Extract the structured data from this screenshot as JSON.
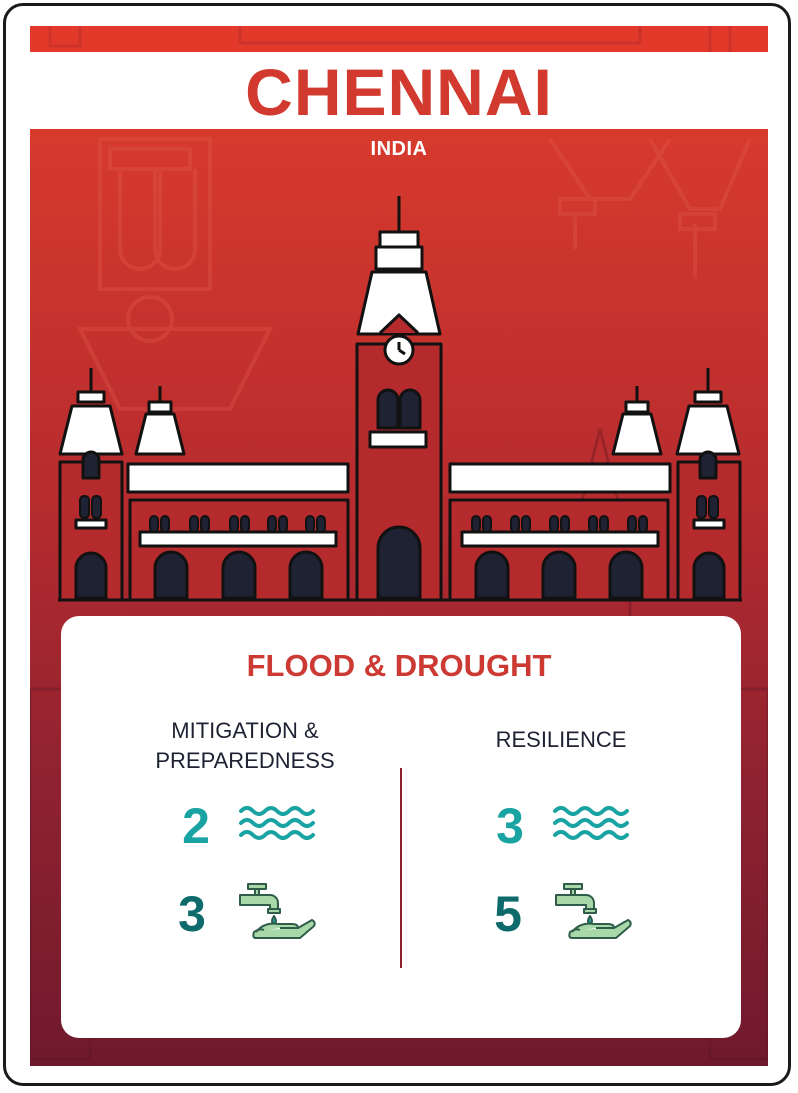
{
  "card": {
    "city": "CHENNAI",
    "country": "INDIA"
  },
  "hazard": {
    "title": "FLOOD & DROUGHT"
  },
  "columns": {
    "left": {
      "heading_line1": "MITIGATION &",
      "heading_line2": "PREPAREDNESS"
    },
    "right": {
      "heading": "RESILIENCE"
    }
  },
  "stats": {
    "mitigation_flood": "2",
    "mitigation_drought": "3",
    "resilience_flood": "3",
    "resilience_drought": "5"
  },
  "icons": {
    "flood": "water-waves-icon",
    "drought": "faucet-hand-icon",
    "landmark": "chennai-central-building-icon"
  },
  "colors": {
    "title_red": "#d23a2f",
    "panel_top": "#d73a2d",
    "panel_bottom": "#70192d",
    "teal": "#1aa3a3",
    "dark_teal": "#0f6b6b",
    "drought_green": "#a8d8a8"
  }
}
